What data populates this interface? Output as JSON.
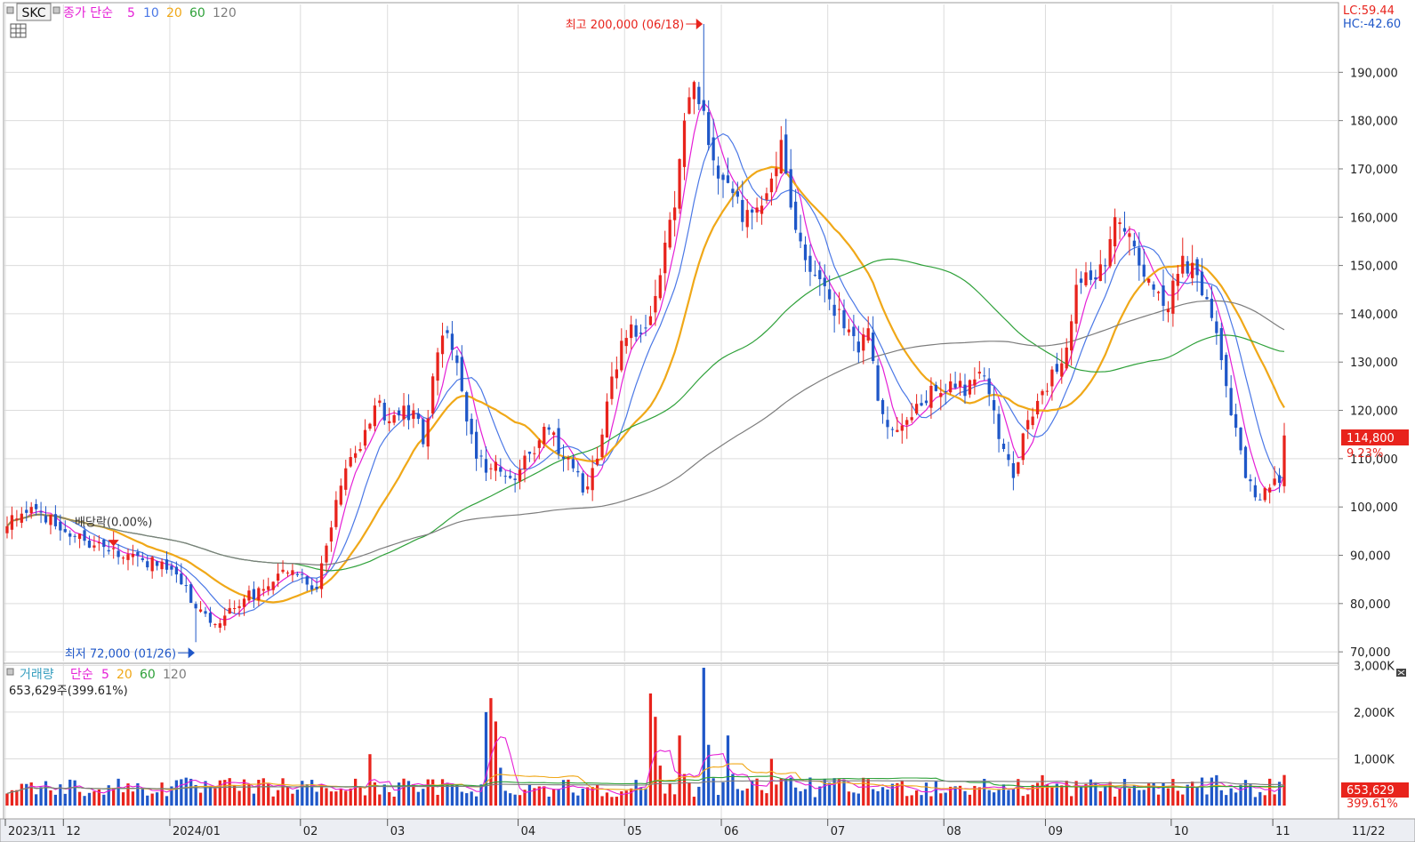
{
  "legend_price": {
    "symbol": "SKC",
    "label": "종가 단순",
    "periods": [
      "5",
      "10",
      "20",
      "60",
      "120"
    ]
  },
  "legend_volume": {
    "label": "거래량",
    "sublabel": "단순",
    "periods": [
      "5",
      "20",
      "60",
      "120"
    ],
    "current": "653,629주(399.61%)"
  },
  "corner": {
    "lc": "LC:59.44",
    "hc": "HC:-42.60"
  },
  "annotations": {
    "high": "최고 200,000 (06/18)",
    "low": "최저 72,000 (01/26)",
    "dividend": "배당락(0.00%)"
  },
  "price_badge": {
    "value": "114,800",
    "change": "9.23%"
  },
  "volume_badge": {
    "value": "653,629",
    "change": "399.61%"
  },
  "colors": {
    "up": "#e8231c",
    "down": "#1f57c8",
    "ma5": "#e51fd6",
    "ma10": "#4b78e6",
    "ma20": "#f0a818",
    "ma60": "#2fa13a",
    "ma120": "#7d7d7d"
  },
  "chart_data": [
    {
      "type": "candlestick",
      "y_ticks": [
        "190,000",
        "180,000",
        "170,000",
        "160,000",
        "150,000",
        "140,000",
        "130,000",
        "120,000",
        "110,000",
        "100,000",
        "90,000",
        "80,000",
        "70,000"
      ],
      "ylim": [
        68000,
        200000
      ],
      "x_tick_labels": [
        "2023/11",
        "12",
        "2024/01",
        "02",
        "03",
        "04",
        "05",
        "06",
        "07",
        "08",
        "09",
        "10",
        "11"
      ],
      "last_date": "11/22",
      "last_close": 114800,
      "highest": {
        "value": 200000,
        "date": "06/18"
      },
      "lowest": {
        "value": 72000,
        "date": "01/26"
      },
      "anchors": [
        [
          0,
          96000
        ],
        [
          5,
          100000
        ],
        [
          10,
          96000
        ],
        [
          16,
          93000
        ],
        [
          22,
          91500
        ],
        [
          28,
          89000
        ],
        [
          33,
          87000
        ],
        [
          36,
          84000
        ],
        [
          39,
          79000
        ],
        [
          42,
          76000
        ],
        [
          45,
          77500
        ],
        [
          49,
          81000
        ],
        [
          53,
          83000
        ],
        [
          57,
          87000
        ],
        [
          61,
          86000
        ],
        [
          64,
          83000
        ],
        [
          66,
          92000
        ],
        [
          70,
          108000
        ],
        [
          73,
          112000
        ],
        [
          76,
          121000
        ],
        [
          80,
          119000
        ],
        [
          84,
          120000
        ],
        [
          86,
          113000
        ],
        [
          89,
          132000
        ],
        [
          91,
          136000
        ],
        [
          94,
          124000
        ],
        [
          97,
          110000
        ],
        [
          100,
          108000
        ],
        [
          104,
          106000
        ],
        [
          108,
          111000
        ],
        [
          112,
          116000
        ],
        [
          114,
          111000
        ],
        [
          117,
          108000
        ],
        [
          119,
          103000
        ],
        [
          122,
          110000
        ],
        [
          125,
          127000
        ],
        [
          128,
          135000
        ],
        [
          132,
          137000
        ],
        [
          135,
          148000
        ],
        [
          138,
          162000
        ],
        [
          140,
          180000
        ],
        [
          142,
          188000
        ],
        [
          144,
          182000
        ],
        [
          147,
          168000
        ],
        [
          150,
          165000
        ],
        [
          152,
          159000
        ],
        [
          155,
          162000
        ],
        [
          158,
          168000
        ],
        [
          160,
          176000
        ],
        [
          162,
          162000
        ],
        [
          164,
          155000
        ],
        [
          167,
          148000
        ],
        [
          170,
          143000
        ],
        [
          173,
          137000
        ],
        [
          176,
          132000
        ],
        [
          178,
          137000
        ],
        [
          180,
          122000
        ],
        [
          183,
          116000
        ],
        [
          186,
          118000
        ],
        [
          189,
          121000
        ],
        [
          192,
          124000
        ],
        [
          195,
          126000
        ],
        [
          198,
          123000
        ],
        [
          201,
          128000
        ],
        [
          204,
          120000
        ],
        [
          206,
          112000
        ],
        [
          208,
          106000
        ],
        [
          211,
          118000
        ],
        [
          214,
          124000
        ],
        [
          217,
          128000
        ],
        [
          219,
          133000
        ],
        [
          221,
          146000
        ],
        [
          224,
          147000
        ],
        [
          227,
          150000
        ],
        [
          229,
          160000
        ],
        [
          231,
          157000
        ],
        [
          234,
          150000
        ],
        [
          237,
          145000
        ],
        [
          240,
          141000
        ],
        [
          243,
          152000
        ],
        [
          246,
          148000
        ],
        [
          248,
          143000
        ],
        [
          250,
          136000
        ],
        [
          253,
          119000
        ],
        [
          256,
          106000
        ],
        [
          258,
          102000
        ],
        [
          261,
          104000
        ],
        [
          263,
          105000
        ],
        [
          264,
          114800
        ]
      ],
      "series": [
        {
          "name": "5",
          "color": "#e51fd6"
        },
        {
          "name": "10",
          "color": "#4b78e6"
        },
        {
          "name": "20",
          "color": "#f0a818"
        },
        {
          "name": "60",
          "color": "#2fa13a"
        },
        {
          "name": "120",
          "color": "#7d7d7d"
        }
      ]
    },
    {
      "type": "bar",
      "y_ticks": [
        "3,000K",
        "2,000K",
        "1,000K"
      ],
      "ylim": [
        0,
        3000000
      ],
      "last_volume": 653629,
      "last_volume_ratio": "399.61%",
      "spikes": [
        [
          75,
          1100000
        ],
        [
          99,
          2000000
        ],
        [
          100,
          2300000
        ],
        [
          101,
          1800000
        ],
        [
          133,
          2400000
        ],
        [
          134,
          1900000
        ],
        [
          139,
          1500000
        ],
        [
          144,
          2950000
        ],
        [
          145,
          1300000
        ],
        [
          149,
          1500000
        ],
        [
          158,
          1000000
        ],
        [
          214,
          650000
        ],
        [
          250,
          650000
        ],
        [
          264,
          653629
        ]
      ],
      "series": [
        {
          "name": "5",
          "color": "#e51fd6"
        },
        {
          "name": "20",
          "color": "#f0a818"
        },
        {
          "name": "60",
          "color": "#2fa13a"
        },
        {
          "name": "120",
          "color": "#7d7d7d"
        }
      ]
    }
  ]
}
